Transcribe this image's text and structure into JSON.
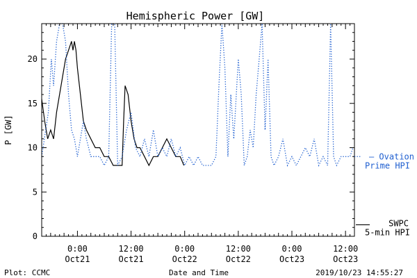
{
  "chart_data": {
    "type": "line",
    "title": "Hemispheric Power [GW]",
    "xlabel": "Date and Time",
    "ylabel": "P [GW]",
    "xlim": [
      "2019-10-20 16:00",
      "2019-10-23 14:00"
    ],
    "ylim": [
      0,
      24
    ],
    "x_ticks": [
      {
        "time": "2019-10-21 00:00",
        "label": "0:00",
        "sublabel": "Oct21"
      },
      {
        "time": "2019-10-21 12:00",
        "label": "12:00",
        "sublabel": "Oct21"
      },
      {
        "time": "2019-10-22 00:00",
        "label": "0:00",
        "sublabel": "Oct22"
      },
      {
        "time": "2019-10-22 12:00",
        "label": "12:00",
        "sublabel": "Oct22"
      },
      {
        "time": "2019-10-23 00:00",
        "label": "0:00",
        "sublabel": "Oct23"
      },
      {
        "time": "2019-10-23 12:00",
        "label": "12:00",
        "sublabel": "Oct23"
      }
    ],
    "y_ticks": [
      0,
      5,
      10,
      15,
      20
    ],
    "legend": [
      {
        "marker": "–",
        "line1": "Ovation",
        "line2": "Prime HPI",
        "color": "#1f5fd0",
        "style": "dotted",
        "value": 9.0
      },
      {
        "marker": "",
        "line1": "SWPC",
        "line2": "5-min HPI",
        "color": "#000000",
        "style": "solid",
        "value": 1.3
      }
    ],
    "series": [
      {
        "color": "#000000",
        "style": "solid",
        "points": [
          [
            "2019-10-20 16:00",
            15.5
          ],
          [
            "2019-10-20 16:40",
            13
          ],
          [
            "2019-10-20 17:20",
            11
          ],
          [
            "2019-10-20 18:00",
            12
          ],
          [
            "2019-10-20 18:40",
            11
          ],
          [
            "2019-10-20 19:20",
            14
          ],
          [
            "2019-10-20 20:00",
            16
          ],
          [
            "2019-10-20 20:40",
            18
          ],
          [
            "2019-10-20 21:20",
            20
          ],
          [
            "2019-10-20 22:00",
            21
          ],
          [
            "2019-10-20 22:40",
            22
          ],
          [
            "2019-10-20 23:00",
            21
          ],
          [
            "2019-10-20 23:20",
            22
          ],
          [
            "2019-10-20 23:40",
            21
          ],
          [
            "2019-10-21 00:00",
            19
          ],
          [
            "2019-10-21 00:40",
            16
          ],
          [
            "2019-10-21 01:20",
            13
          ],
          [
            "2019-10-21 02:00",
            12
          ],
          [
            "2019-10-21 03:00",
            11
          ],
          [
            "2019-10-21 04:00",
            10
          ],
          [
            "2019-10-21 05:00",
            10
          ],
          [
            "2019-10-21 06:00",
            9
          ],
          [
            "2019-10-21 07:00",
            9
          ],
          [
            "2019-10-21 08:00",
            8
          ],
          [
            "2019-10-21 09:00",
            8
          ],
          [
            "2019-10-21 10:00",
            8
          ],
          [
            "2019-10-21 10:20",
            13
          ],
          [
            "2019-10-21 10:40",
            17
          ],
          [
            "2019-10-21 11:20",
            16
          ],
          [
            "2019-10-21 12:00",
            13
          ],
          [
            "2019-10-21 12:40",
            11
          ],
          [
            "2019-10-21 13:20",
            10
          ],
          [
            "2019-10-21 14:00",
            10
          ],
          [
            "2019-10-21 15:00",
            9
          ],
          [
            "2019-10-21 16:00",
            8
          ],
          [
            "2019-10-21 17:00",
            9
          ],
          [
            "2019-10-21 18:00",
            9
          ],
          [
            "2019-10-21 19:00",
            10
          ],
          [
            "2019-10-21 20:00",
            11
          ],
          [
            "2019-10-21 21:00",
            10
          ],
          [
            "2019-10-21 22:00",
            9
          ],
          [
            "2019-10-21 23:00",
            9
          ],
          [
            "2019-10-21 23:50",
            8
          ]
        ]
      },
      {
        "color": "#1f5fd0",
        "style": "dotted",
        "points": [
          [
            "2019-10-20 16:00",
            9
          ],
          [
            "2019-10-20 17:30",
            14
          ],
          [
            "2019-10-20 18:10",
            20
          ],
          [
            "2019-10-20 18:40",
            17
          ],
          [
            "2019-10-20 19:20",
            22
          ],
          [
            "2019-10-20 20:00",
            24
          ],
          [
            "2019-10-20 20:40",
            24
          ],
          [
            "2019-10-20 21:20",
            22
          ],
          [
            "2019-10-20 22:00",
            16
          ],
          [
            "2019-10-20 22:40",
            12
          ],
          [
            "2019-10-20 23:20",
            11
          ],
          [
            "2019-10-21 00:00",
            9
          ],
          [
            "2019-10-21 00:40",
            11
          ],
          [
            "2019-10-21 01:20",
            13
          ],
          [
            "2019-10-21 02:00",
            11
          ],
          [
            "2019-10-21 03:00",
            9
          ],
          [
            "2019-10-21 04:00",
            9
          ],
          [
            "2019-10-21 05:00",
            9
          ],
          [
            "2019-10-21 06:00",
            8
          ],
          [
            "2019-10-21 07:00",
            9
          ],
          [
            "2019-10-21 07:40",
            24
          ],
          [
            "2019-10-21 08:20",
            24
          ],
          [
            "2019-10-21 09:00",
            8
          ],
          [
            "2019-10-21 10:00",
            9
          ],
          [
            "2019-10-21 11:00",
            12
          ],
          [
            "2019-10-21 12:00",
            14
          ],
          [
            "2019-10-21 13:00",
            10
          ],
          [
            "2019-10-21 14:00",
            9
          ],
          [
            "2019-10-21 15:00",
            11
          ],
          [
            "2019-10-21 16:00",
            9
          ],
          [
            "2019-10-21 17:00",
            12
          ],
          [
            "2019-10-21 18:00",
            9
          ],
          [
            "2019-10-21 19:00",
            10
          ],
          [
            "2019-10-21 20:00",
            9
          ],
          [
            "2019-10-21 21:00",
            11
          ],
          [
            "2019-10-21 22:00",
            9
          ],
          [
            "2019-10-21 23:00",
            10
          ],
          [
            "2019-10-22 00:00",
            8
          ],
          [
            "2019-10-22 01:00",
            9
          ],
          [
            "2019-10-22 02:00",
            8
          ],
          [
            "2019-10-22 03:00",
            9
          ],
          [
            "2019-10-22 04:00",
            8
          ],
          [
            "2019-10-22 05:00",
            8
          ],
          [
            "2019-10-22 06:00",
            8
          ],
          [
            "2019-10-22 07:00",
            9
          ],
          [
            "2019-10-22 07:40",
            17
          ],
          [
            "2019-10-22 08:20",
            24
          ],
          [
            "2019-10-22 09:00",
            19
          ],
          [
            "2019-10-22 09:40",
            9
          ],
          [
            "2019-10-22 10:20",
            16
          ],
          [
            "2019-10-22 11:00",
            11
          ],
          [
            "2019-10-22 12:00",
            20
          ],
          [
            "2019-10-22 12:40",
            16
          ],
          [
            "2019-10-22 13:20",
            8
          ],
          [
            "2019-10-22 14:00",
            9
          ],
          [
            "2019-10-22 14:40",
            12
          ],
          [
            "2019-10-22 15:20",
            10
          ],
          [
            "2019-10-22 16:00",
            16
          ],
          [
            "2019-10-22 16:40",
            20
          ],
          [
            "2019-10-22 17:20",
            24
          ],
          [
            "2019-10-22 18:00",
            12
          ],
          [
            "2019-10-22 18:40",
            20
          ],
          [
            "2019-10-22 19:20",
            9
          ],
          [
            "2019-10-22 20:00",
            8
          ],
          [
            "2019-10-22 21:00",
            9
          ],
          [
            "2019-10-22 22:00",
            11
          ],
          [
            "2019-10-22 23:00",
            8
          ],
          [
            "2019-10-23 00:00",
            9
          ],
          [
            "2019-10-23 01:00",
            8
          ],
          [
            "2019-10-23 02:00",
            9
          ],
          [
            "2019-10-23 03:00",
            10
          ],
          [
            "2019-10-23 04:00",
            9
          ],
          [
            "2019-10-23 05:00",
            11
          ],
          [
            "2019-10-23 06:00",
            8
          ],
          [
            "2019-10-23 07:00",
            9
          ],
          [
            "2019-10-23 08:00",
            8
          ],
          [
            "2019-10-23 08:40",
            24
          ],
          [
            "2019-10-23 09:20",
            9
          ],
          [
            "2019-10-23 10:00",
            8
          ],
          [
            "2019-10-23 11:00",
            9
          ],
          [
            "2019-10-23 12:00",
            9
          ],
          [
            "2019-10-23 13:00",
            9
          ],
          [
            "2019-10-23 13:40",
            10
          ]
        ]
      }
    ]
  },
  "footer": {
    "left": "Plot: CCMC",
    "center": "Date and Time",
    "right": "2019/10/23 14:55:27"
  }
}
